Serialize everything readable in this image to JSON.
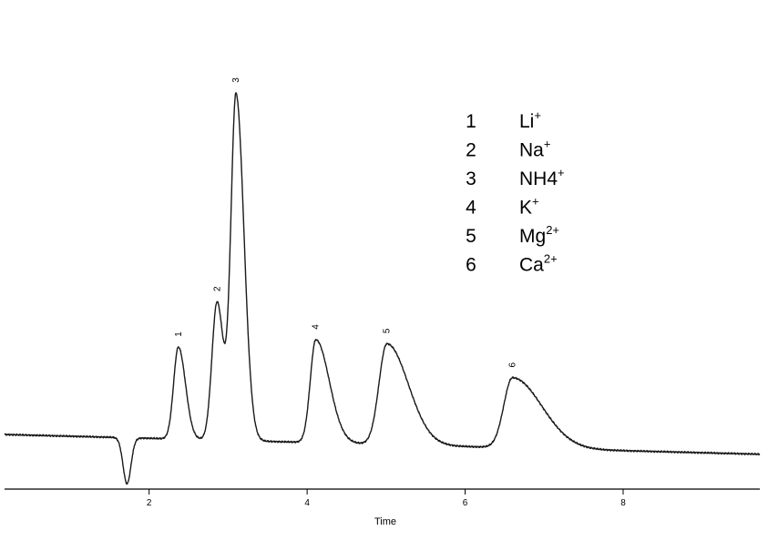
{
  "chart_data": {
    "type": "line",
    "xlabel": "Time",
    "ylabel": "",
    "xlim": [
      0.17,
      9.73
    ],
    "ylim": [
      -0.6,
      10
    ],
    "xticks": [
      "2",
      "4",
      "6",
      "8"
    ],
    "baseline": {
      "start": 0.5,
      "end": 0.05
    },
    "dip": {
      "x": 1.72,
      "depth": -1.05,
      "width": 0.05
    },
    "peaks": [
      {
        "label": "1",
        "x": 2.37,
        "height": 2.1,
        "width_left": 0.06,
        "width_right": 0.09
      },
      {
        "label": "2",
        "x": 2.86,
        "height": 3.15,
        "width_left": 0.065,
        "width_right": 0.08
      },
      {
        "label": "3",
        "x": 3.1,
        "height": 7.9,
        "width_left": 0.065,
        "width_right": 0.1
      },
      {
        "label": "4",
        "x": 4.11,
        "height": 2.35,
        "width_left": 0.07,
        "width_right": 0.17
      },
      {
        "label": "5",
        "x": 5.01,
        "height": 2.3,
        "width_left": 0.1,
        "width_right": 0.27
      },
      {
        "label": "6",
        "x": 6.6,
        "height": 1.6,
        "width_left": 0.11,
        "width_right": 0.37
      }
    ],
    "legend": [
      {
        "number": "1",
        "ion": "Li",
        "charge": "+"
      },
      {
        "number": "2",
        "ion": "Na",
        "charge": "+"
      },
      {
        "number": "3",
        "ion": "NH4",
        "charge": "+"
      },
      {
        "number": "4",
        "ion": "K",
        "charge": "+"
      },
      {
        "number": "5",
        "ion": "Mg",
        "charge": "2+"
      },
      {
        "number": "6",
        "ion": "Ca",
        "charge": "2+"
      }
    ],
    "grid": false,
    "legend_placement": "top-right"
  },
  "colors": {
    "trace": "#1a1a1a",
    "axis": "#000000",
    "background": "#ffffff"
  }
}
